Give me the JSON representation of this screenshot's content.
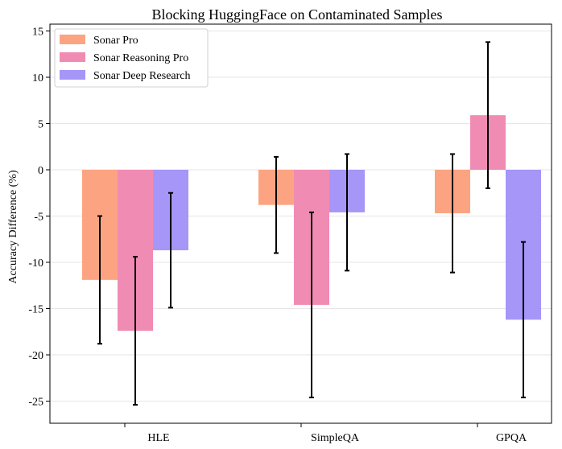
{
  "chart_data": {
    "type": "bar",
    "title": "Blocking HuggingFace on Contaminated Samples",
    "xlabel": "",
    "ylabel": "Accuracy Difference (%)",
    "categories": [
      "HLE",
      "SimpleQA",
      "GPQA"
    ],
    "ylim": [
      -27.5,
      15.5
    ],
    "yticks": [
      15,
      10,
      5,
      0,
      -5,
      -10,
      -15,
      -20,
      -25
    ],
    "grid": true,
    "legend_position": "top-left",
    "series": [
      {
        "name": "Sonar Pro",
        "color": "#fca482",
        "values": [
          -11.9,
          -3.8,
          -4.7
        ],
        "err_low": [
          -18.8,
          -9.0,
          -11.1
        ],
        "err_high": [
          -5.0,
          1.4,
          1.7
        ]
      },
      {
        "name": "Sonar Reasoning Pro",
        "color": "#f08cb3",
        "values": [
          -17.4,
          -14.6,
          5.9
        ],
        "err_low": [
          -25.4,
          -24.6,
          -2.0
        ],
        "err_high": [
          -9.4,
          -4.6,
          13.8
        ]
      },
      {
        "name": "Sonar Deep Research",
        "color": "#a596f8",
        "values": [
          -8.7,
          -4.6,
          -16.2
        ],
        "err_low": [
          -14.9,
          -10.9,
          -24.6
        ],
        "err_high": [
          -2.5,
          1.7,
          -7.8
        ]
      }
    ]
  }
}
